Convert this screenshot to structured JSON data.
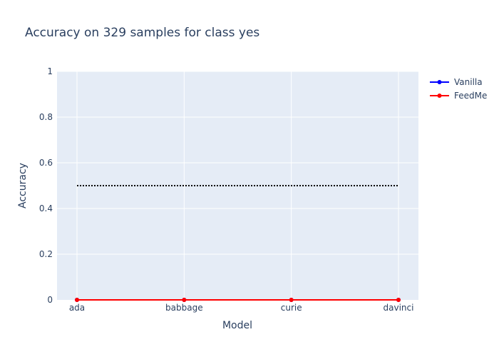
{
  "chart_data": {
    "type": "line",
    "title": "Accuracy on 329 samples for class  yes",
    "xlabel": "Model",
    "ylabel": "Accuracy",
    "categories": [
      "ada",
      "babbage",
      "curie",
      "davinci"
    ],
    "ylim": [
      0,
      1
    ],
    "yticks": [
      "0",
      "0.2",
      "0.4",
      "0.6",
      "0.8",
      "1"
    ],
    "series": [
      {
        "name": "Vanilla",
        "values": [
          0,
          0,
          0,
          0
        ],
        "color": "#0000ff"
      },
      {
        "name": "FeedMe",
        "values": [
          0,
          0,
          0,
          0
        ],
        "color": "#ff0000"
      }
    ],
    "reference_line": {
      "value": 0.5,
      "style": "dotted",
      "color": "#000000"
    },
    "grid": true,
    "legend_position": "top-right",
    "plot_background": "#e5ecf6"
  }
}
